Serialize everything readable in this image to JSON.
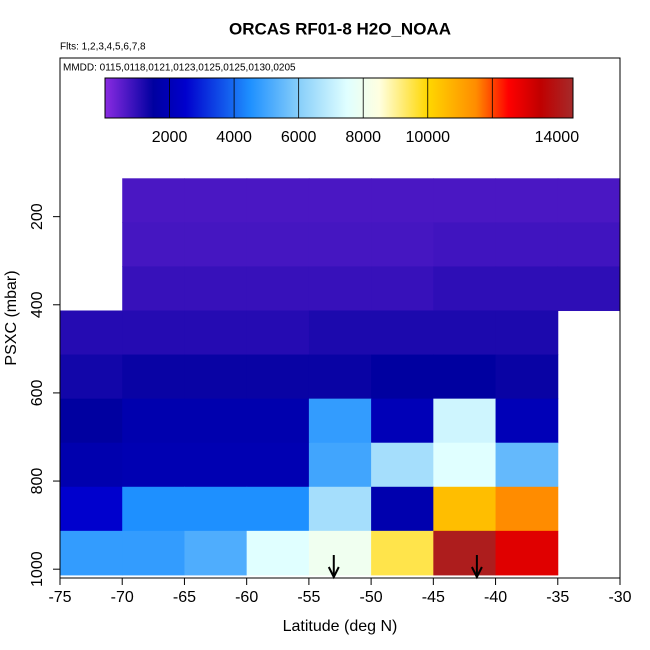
{
  "chart_data": {
    "type": "heatmap",
    "title": "ORCAS RF01-8 H2O_NOAA",
    "subtitle": "Flts: 1,2,3,4,5,6,7,8",
    "annotation": "MMDD: 0115,0118,0121,0123,0125,0125,0130,0205",
    "x_label": "Latitude (deg N)",
    "y_label": "PSXC (mbar)",
    "xlim": [
      -75,
      -30
    ],
    "ylim": [
      1020,
      -160
    ],
    "xticks": [
      -75,
      -70,
      -65,
      -60,
      -55,
      -50,
      -45,
      -40,
      -35,
      -30
    ],
    "yticks": [
      200,
      400,
      600,
      800,
      1000
    ],
    "x_edges": [
      -75,
      -70,
      -65,
      -60,
      -55,
      -50,
      -45,
      -40,
      -35,
      -30
    ],
    "y_edges": [
      113,
      213,
      313,
      413,
      513,
      613,
      713,
      813,
      913,
      1013
    ],
    "values": [
      [
        null,
        700,
        700,
        700,
        700,
        700,
        700,
        700,
        700
      ],
      [
        null,
        750,
        750,
        750,
        750,
        750,
        800,
        800,
        800
      ],
      [
        null,
        900,
        900,
        900,
        900,
        900,
        1000,
        1000,
        1000
      ],
      [
        1100,
        1100,
        1100,
        1100,
        1200,
        1200,
        1200,
        1200,
        null
      ],
      [
        1300,
        1400,
        1400,
        1400,
        1400,
        1500,
        1500,
        1400,
        null
      ],
      [
        1500,
        1800,
        1800,
        1800,
        4800,
        2000,
        7200,
        2000,
        null
      ],
      [
        1800,
        1900,
        1900,
        1900,
        5000,
        6500,
        7500,
        5500,
        null
      ],
      [
        2500,
        4500,
        4500,
        4500,
        6500,
        1800,
        10500,
        11500,
        null
      ],
      [
        4800,
        4800,
        5200,
        7500,
        8000,
        9500,
        14200,
        13000,
        null
      ]
    ],
    "clim": [
      0,
      14500
    ],
    "cticks": [
      2000,
      4000,
      6000,
      8000,
      10000,
      14000
    ],
    "cbar_lines": [
      2000,
      4000,
      6000,
      8000,
      10000,
      12000
    ],
    "colorscale": [
      [
        0,
        "#8a2be2"
      ],
      [
        1500,
        "#0000a0"
      ],
      [
        2500,
        "#0000cd"
      ],
      [
        4500,
        "#1e90ff"
      ],
      [
        6000,
        "#87cefa"
      ],
      [
        7500,
        "#e0ffff"
      ],
      [
        8500,
        "#ffffe0"
      ],
      [
        10000,
        "#ffd700"
      ],
      [
        11500,
        "#ff8c00"
      ],
      [
        12500,
        "#ff0000"
      ],
      [
        13500,
        "#c00000"
      ],
      [
        14500,
        "#a52a2a"
      ]
    ],
    "markers": [
      -53,
      -41.5
    ]
  }
}
